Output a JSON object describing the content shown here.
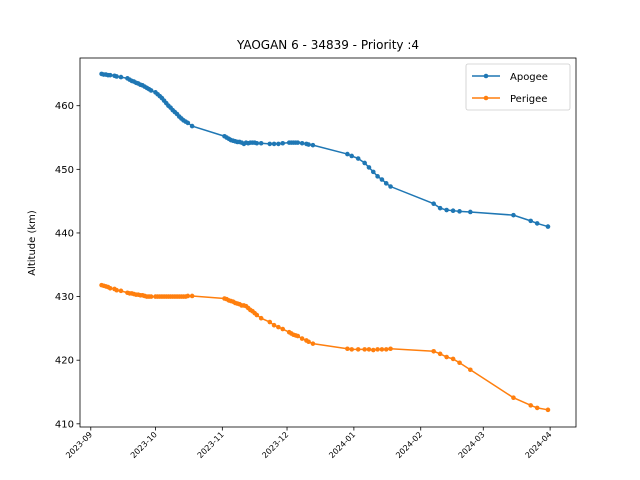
{
  "chart_data": {
    "type": "line",
    "title": "YAOGAN 6 - 34839 - Priority :4",
    "xlabel": "",
    "ylabel": "Altitude (km)",
    "xlim": [
      "2023-08-27",
      "2024-04-13"
    ],
    "ylim": [
      409.5,
      467.5
    ],
    "x_ticks": [
      "2023-09",
      "2023-10",
      "2023-11",
      "2023-12",
      "2024-01",
      "2024-02",
      "2024-03",
      "2024-04"
    ],
    "y_ticks": [
      410,
      420,
      430,
      440,
      450,
      460
    ],
    "grid": false,
    "legend_position": "top-right",
    "series": [
      {
        "name": "Apogee",
        "color": "#1f77b4",
        "marker": "circle",
        "points": [
          [
            "2023-09-06",
            465.0
          ],
          [
            "2023-09-07",
            464.9
          ],
          [
            "2023-09-08",
            464.9
          ],
          [
            "2023-09-09",
            464.8
          ],
          [
            "2023-09-10",
            464.8
          ],
          [
            "2023-09-12",
            464.7
          ],
          [
            "2023-09-13",
            464.6
          ],
          [
            "2023-09-15",
            464.5
          ],
          [
            "2023-09-18",
            464.3
          ],
          [
            "2023-09-19",
            464.1
          ],
          [
            "2023-09-20",
            463.9
          ],
          [
            "2023-09-21",
            463.8
          ],
          [
            "2023-09-22",
            463.6
          ],
          [
            "2023-09-23",
            463.5
          ],
          [
            "2023-09-24",
            463.3
          ],
          [
            "2023-09-25",
            463.2
          ],
          [
            "2023-09-26",
            463.0
          ],
          [
            "2023-09-27",
            462.8
          ],
          [
            "2023-09-28",
            462.6
          ],
          [
            "2023-09-29",
            462.4
          ],
          [
            "2023-10-01",
            462.1
          ],
          [
            "2023-10-02",
            461.8
          ],
          [
            "2023-10-03",
            461.5
          ],
          [
            "2023-10-04",
            461.2
          ],
          [
            "2023-10-05",
            460.8
          ],
          [
            "2023-10-06",
            460.4
          ],
          [
            "2023-10-07",
            460.0
          ],
          [
            "2023-10-08",
            459.7
          ],
          [
            "2023-10-09",
            459.3
          ],
          [
            "2023-10-10",
            459.0
          ],
          [
            "2023-10-11",
            458.7
          ],
          [
            "2023-10-12",
            458.3
          ],
          [
            "2023-10-13",
            458.0
          ],
          [
            "2023-10-14",
            457.7
          ],
          [
            "2023-10-15",
            457.5
          ],
          [
            "2023-10-16",
            457.3
          ],
          [
            "2023-10-18",
            456.8
          ],
          [
            "2023-11-02",
            455.2
          ],
          [
            "2023-11-03",
            455.0
          ],
          [
            "2023-11-04",
            454.8
          ],
          [
            "2023-11-05",
            454.6
          ],
          [
            "2023-11-06",
            454.5
          ],
          [
            "2023-11-07",
            454.4
          ],
          [
            "2023-11-08",
            454.3
          ],
          [
            "2023-11-09",
            454.3
          ],
          [
            "2023-11-10",
            454.2
          ],
          [
            "2023-11-11",
            454.0
          ],
          [
            "2023-11-12",
            454.2
          ],
          [
            "2023-11-13",
            454.1
          ],
          [
            "2023-11-14",
            454.2
          ],
          [
            "2023-11-15",
            454.2
          ],
          [
            "2023-11-16",
            454.2
          ],
          [
            "2023-11-17",
            454.1
          ],
          [
            "2023-11-19",
            454.1
          ],
          [
            "2023-11-23",
            454.0
          ],
          [
            "2023-11-25",
            454.0
          ],
          [
            "2023-11-27",
            454.0
          ],
          [
            "2023-11-29",
            454.1
          ],
          [
            "2023-12-02",
            454.2
          ],
          [
            "2023-12-03",
            454.2
          ],
          [
            "2023-12-04",
            454.2
          ],
          [
            "2023-12-05",
            454.2
          ],
          [
            "2023-12-06",
            454.2
          ],
          [
            "2023-12-08",
            454.1
          ],
          [
            "2023-12-10",
            454.0
          ],
          [
            "2023-12-11",
            453.9
          ],
          [
            "2023-12-13",
            453.8
          ],
          [
            "2023-12-29",
            452.4
          ],
          [
            "2023-12-31",
            452.1
          ],
          [
            "2024-01-03",
            451.7
          ],
          [
            "2024-01-06",
            451.0
          ],
          [
            "2024-01-08",
            450.3
          ],
          [
            "2024-01-10",
            449.6
          ],
          [
            "2024-01-12",
            448.9
          ],
          [
            "2024-01-14",
            448.4
          ],
          [
            "2024-01-16",
            447.8
          ],
          [
            "2024-01-18",
            447.3
          ],
          [
            "2024-02-07",
            444.6
          ],
          [
            "2024-02-10",
            443.9
          ],
          [
            "2024-02-13",
            443.6
          ],
          [
            "2024-02-16",
            443.5
          ],
          [
            "2024-02-19",
            443.4
          ],
          [
            "2024-02-24",
            443.3
          ],
          [
            "2024-03-15",
            442.8
          ],
          [
            "2024-03-23",
            441.9
          ],
          [
            "2024-03-26",
            441.5
          ],
          [
            "2024-03-31",
            441.0
          ]
        ]
      },
      {
        "name": "Perigee",
        "color": "#ff7f0e",
        "marker": "circle",
        "points": [
          [
            "2023-09-06",
            431.8
          ],
          [
            "2023-09-07",
            431.7
          ],
          [
            "2023-09-08",
            431.6
          ],
          [
            "2023-09-09",
            431.5
          ],
          [
            "2023-09-10",
            431.3
          ],
          [
            "2023-09-12",
            431.2
          ],
          [
            "2023-09-13",
            431.0
          ],
          [
            "2023-09-15",
            430.9
          ],
          [
            "2023-09-18",
            430.6
          ],
          [
            "2023-09-19",
            430.5
          ],
          [
            "2023-09-20",
            430.5
          ],
          [
            "2023-09-21",
            430.4
          ],
          [
            "2023-09-22",
            430.3
          ],
          [
            "2023-09-23",
            430.3
          ],
          [
            "2023-09-24",
            430.2
          ],
          [
            "2023-09-25",
            430.2
          ],
          [
            "2023-09-26",
            430.1
          ],
          [
            "2023-09-27",
            430.0
          ],
          [
            "2023-09-28",
            430.0
          ],
          [
            "2023-09-29",
            430.0
          ],
          [
            "2023-10-01",
            430.0
          ],
          [
            "2023-10-02",
            430.0
          ],
          [
            "2023-10-03",
            430.0
          ],
          [
            "2023-10-04",
            430.0
          ],
          [
            "2023-10-05",
            430.0
          ],
          [
            "2023-10-06",
            430.0
          ],
          [
            "2023-10-07",
            430.0
          ],
          [
            "2023-10-08",
            430.0
          ],
          [
            "2023-10-09",
            430.0
          ],
          [
            "2023-10-10",
            430.0
          ],
          [
            "2023-10-11",
            430.0
          ],
          [
            "2023-10-12",
            430.0
          ],
          [
            "2023-10-13",
            430.0
          ],
          [
            "2023-10-14",
            430.0
          ],
          [
            "2023-10-15",
            430.0
          ],
          [
            "2023-10-16",
            430.1
          ],
          [
            "2023-10-18",
            430.1
          ],
          [
            "2023-11-02",
            429.7
          ],
          [
            "2023-11-03",
            429.6
          ],
          [
            "2023-11-04",
            429.4
          ],
          [
            "2023-11-05",
            429.3
          ],
          [
            "2023-11-06",
            429.2
          ],
          [
            "2023-11-07",
            429.0
          ],
          [
            "2023-11-08",
            428.9
          ],
          [
            "2023-11-09",
            428.8
          ],
          [
            "2023-11-10",
            428.6
          ],
          [
            "2023-11-11",
            428.6
          ],
          [
            "2023-11-12",
            428.5
          ],
          [
            "2023-11-13",
            428.2
          ],
          [
            "2023-11-14",
            427.9
          ],
          [
            "2023-11-15",
            427.7
          ],
          [
            "2023-11-16",
            427.4
          ],
          [
            "2023-11-17",
            427.1
          ],
          [
            "2023-11-19",
            426.6
          ],
          [
            "2023-11-23",
            426.0
          ],
          [
            "2023-11-25",
            425.5
          ],
          [
            "2023-11-27",
            425.2
          ],
          [
            "2023-11-29",
            424.9
          ],
          [
            "2023-12-02",
            424.4
          ],
          [
            "2023-12-03",
            424.2
          ],
          [
            "2023-12-04",
            424.0
          ],
          [
            "2023-12-05",
            423.9
          ],
          [
            "2023-12-06",
            423.8
          ],
          [
            "2023-12-08",
            423.4
          ],
          [
            "2023-12-10",
            423.1
          ],
          [
            "2023-12-11",
            422.9
          ],
          [
            "2023-12-13",
            422.6
          ],
          [
            "2023-12-29",
            421.8
          ],
          [
            "2023-12-31",
            421.7
          ],
          [
            "2024-01-03",
            421.7
          ],
          [
            "2024-01-06",
            421.7
          ],
          [
            "2024-01-08",
            421.7
          ],
          [
            "2024-01-10",
            421.6
          ],
          [
            "2024-01-12",
            421.7
          ],
          [
            "2024-01-14",
            421.7
          ],
          [
            "2024-01-16",
            421.7
          ],
          [
            "2024-01-18",
            421.8
          ],
          [
            "2024-02-07",
            421.4
          ],
          [
            "2024-02-10",
            421.0
          ],
          [
            "2024-02-13",
            420.5
          ],
          [
            "2024-02-16",
            420.2
          ],
          [
            "2024-02-19",
            419.6
          ],
          [
            "2024-02-24",
            418.5
          ],
          [
            "2024-03-15",
            414.1
          ],
          [
            "2024-03-23",
            412.9
          ],
          [
            "2024-03-26",
            412.5
          ],
          [
            "2024-03-31",
            412.2
          ]
        ]
      }
    ]
  }
}
